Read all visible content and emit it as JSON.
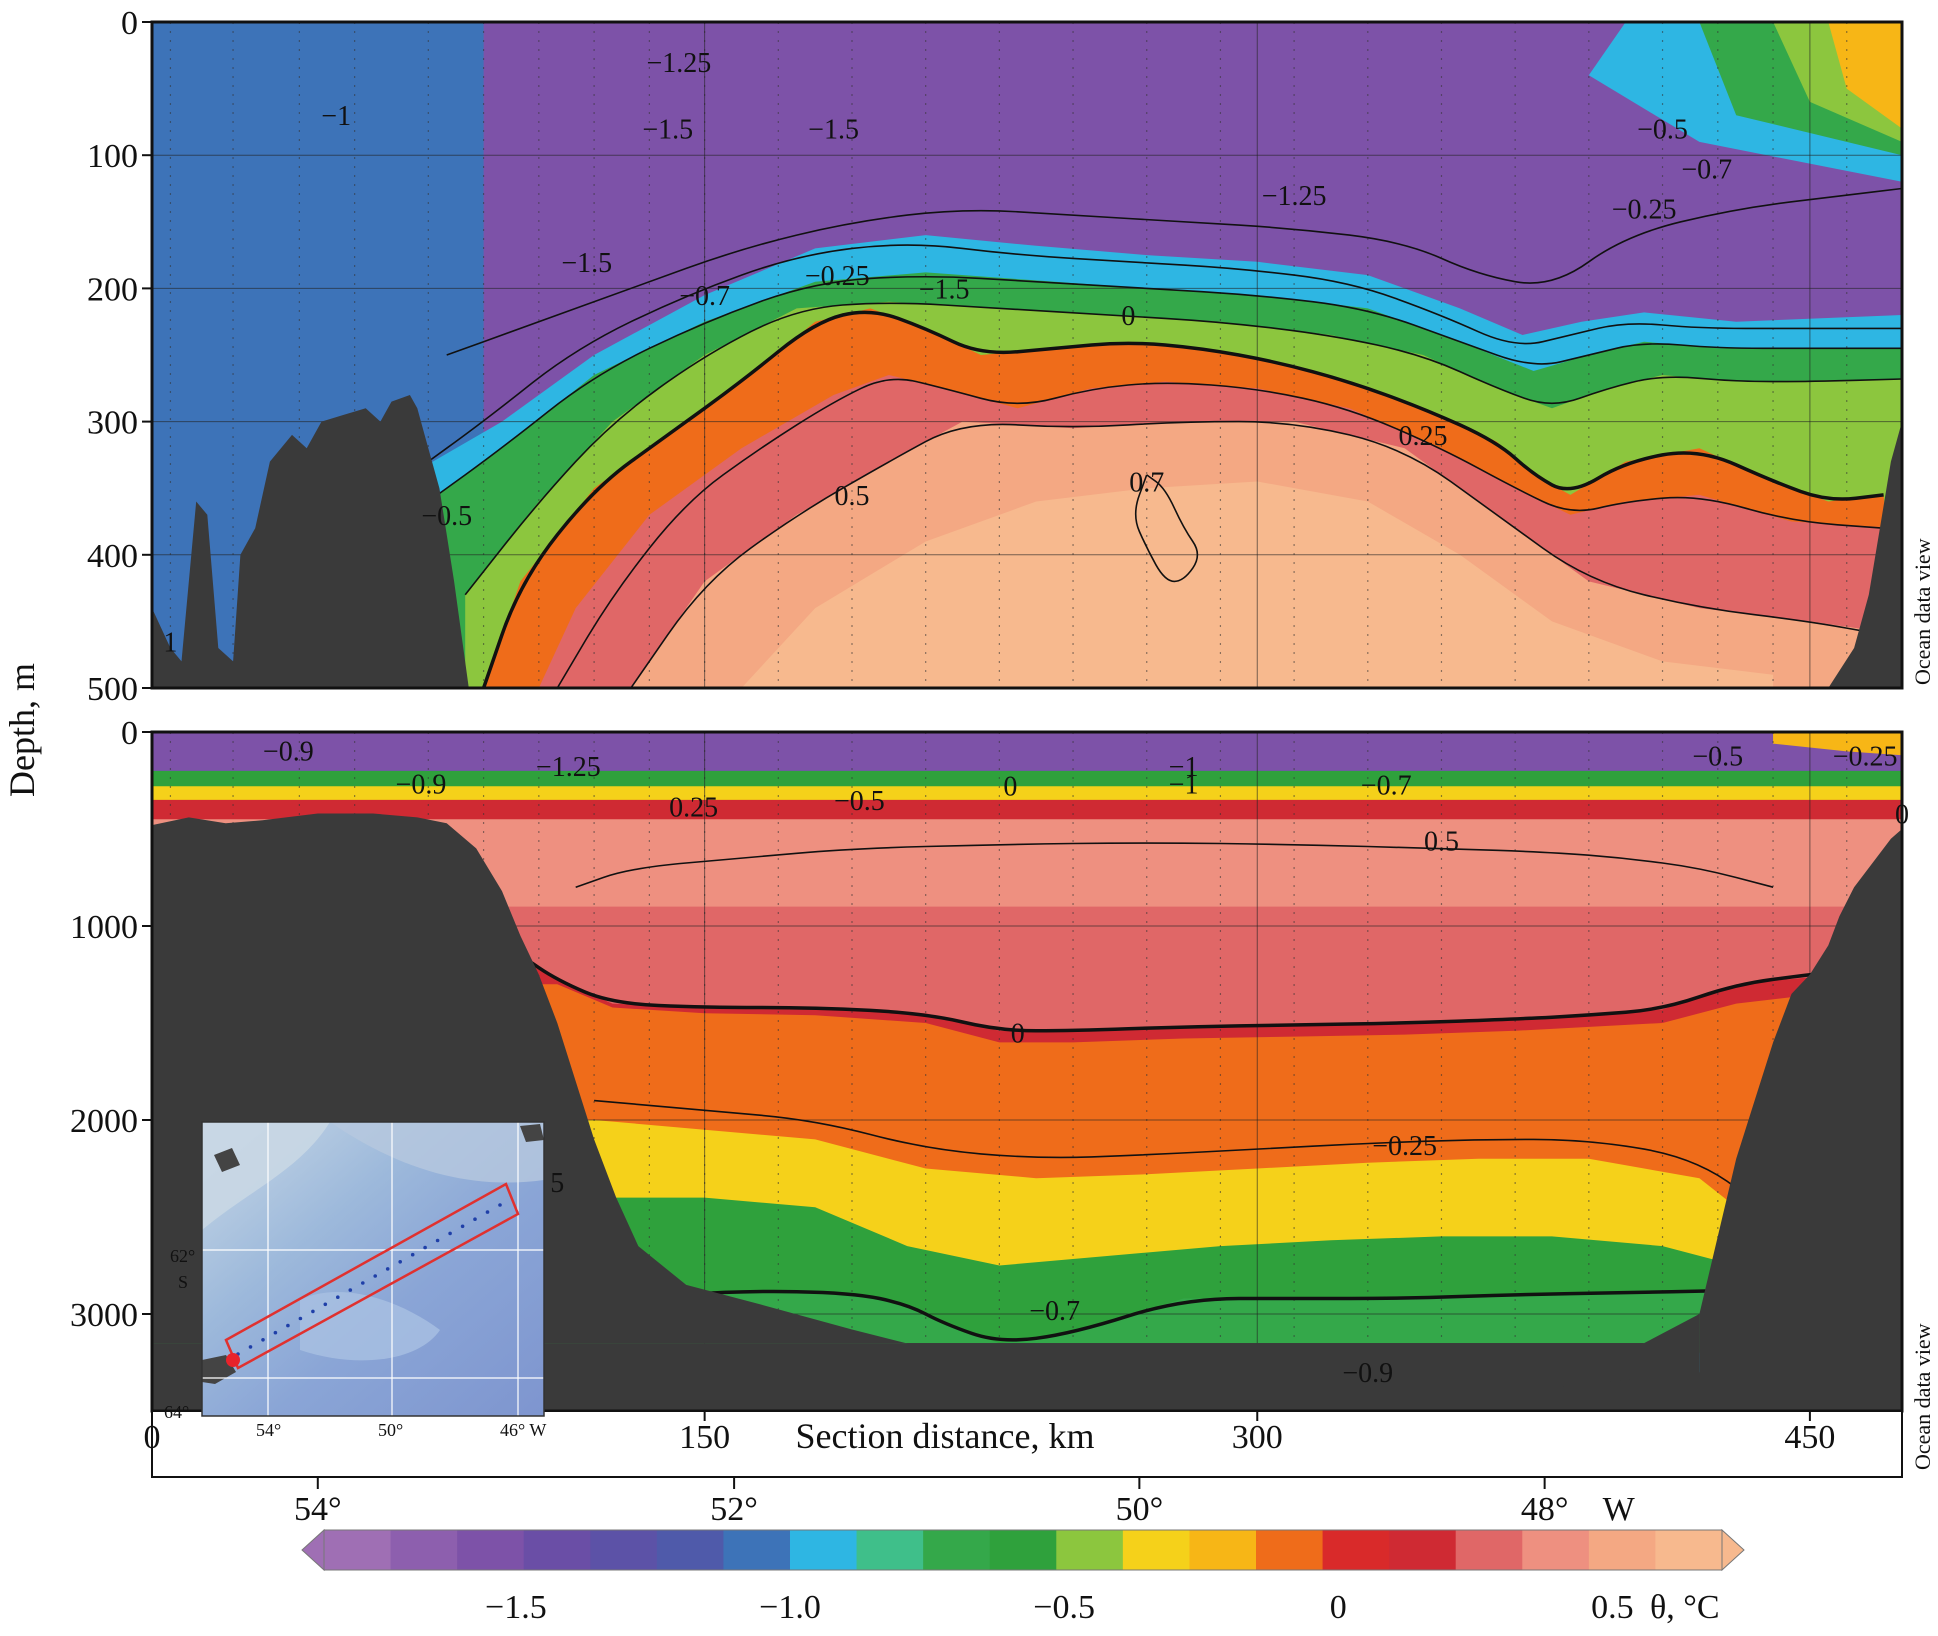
{
  "chart_data": [
    {
      "type": "heatmap",
      "panel": "upper",
      "description_variable": "potential temperature",
      "ylabel": "Depth, m",
      "ylim": [
        500,
        0
      ],
      "yticks": [
        "0",
        "100",
        "200",
        "300",
        "400",
        "500"
      ],
      "xlim": [
        0,
        475
      ],
      "watermark": "Ocean data view",
      "contour_labels": [
        "−1.25",
        "−1.5",
        "−1",
        "−1.5",
        "−1.5",
        "−1.25",
        "−1.5",
        "−0.25",
        "−0.7",
        "0",
        "−0.5",
        "−0.25",
        "−0.7",
        "0.25",
        "0.5",
        "0.7",
        "−0.5",
        "1"
      ],
      "contours": [
        {
          "level": 0,
          "bold": true,
          "x": [
            90,
            100,
            120,
            140,
            160,
            180,
            195,
            210,
            225,
            245,
            265,
            285,
            305,
            325,
            345,
            365,
            375,
            385,
            400,
            420,
            440,
            455,
            470
          ],
          "y": [
            500,
            420,
            350,
            310,
            270,
            225,
            215,
            230,
            250,
            245,
            240,
            245,
            255,
            270,
            290,
            315,
            340,
            355,
            330,
            320,
            345,
            360,
            355
          ]
        },
        {
          "level": 0.25,
          "bold": false,
          "x": [
            110,
            125,
            145,
            165,
            185,
            200,
            215,
            235,
            255,
            275,
            300,
            325,
            350,
            370,
            385,
            400,
            420,
            445,
            470
          ],
          "y": [
            500,
            430,
            360,
            320,
            285,
            265,
            275,
            290,
            275,
            270,
            275,
            290,
            320,
            350,
            370,
            360,
            355,
            375,
            380
          ]
        },
        {
          "level": 0.5,
          "bold": false,
          "x": [
            130,
            150,
            175,
            200,
            220,
            250,
            280,
            310,
            340,
            365,
            390,
            420,
            450,
            470
          ],
          "y": [
            500,
            420,
            370,
            330,
            300,
            305,
            300,
            300,
            320,
            370,
            420,
            440,
            450,
            460
          ]
        },
        {
          "level": -0.25,
          "bold": false,
          "x": [
            85,
            105,
            125,
            150,
            175,
            200,
            230,
            260,
            290,
            320,
            345,
            365,
            380,
            395,
            410,
            430,
            450,
            475
          ],
          "y": [
            430,
            360,
            300,
            250,
            215,
            210,
            215,
            220,
            225,
            235,
            250,
            275,
            290,
            275,
            265,
            270,
            270,
            268
          ]
        },
        {
          "level": -0.5,
          "bold": false,
          "x": [
            75,
            95,
            120,
            150,
            180,
            210,
            240,
            270,
            300,
            330,
            355,
            375,
            390,
            405,
            425,
            450,
            475
          ],
          "y": [
            360,
            320,
            265,
            225,
            195,
            190,
            195,
            200,
            205,
            215,
            240,
            260,
            250,
            240,
            245,
            245,
            245
          ]
        },
        {
          "level": -0.7,
          "bold": false,
          "x": [
            70,
            90,
            115,
            145,
            175,
            205,
            235,
            265,
            295,
            325,
            350,
            370,
            385,
            400,
            420,
            445,
            475
          ],
          "y": [
            340,
            300,
            245,
            205,
            175,
            165,
            175,
            180,
            185,
            195,
            220,
            245,
            235,
            225,
            230,
            230,
            230
          ]
        },
        {
          "level": -1.25,
          "bold": false,
          "x": [
            80,
            100,
            130,
            160,
            190,
            220,
            250,
            280,
            310,
            340,
            360,
            380,
            400,
            430,
            460,
            475
          ],
          "y": [
            250,
            230,
            200,
            170,
            150,
            140,
            145,
            150,
            155,
            165,
            190,
            200,
            160,
            140,
            130,
            125
          ]
        },
        {
          "level": 0.7,
          "bold": false,
          "x": [
            270,
            275,
            280,
            285,
            280,
            275,
            270,
            266,
            270
          ],
          "y": [
            340,
            350,
            380,
            400,
            420,
            420,
            395,
            370,
            340
          ]
        }
      ]
    },
    {
      "type": "heatmap",
      "panel": "lower",
      "description_variable": "potential temperature",
      "ylabel": "Depth, m",
      "ylim": [
        3500,
        0
      ],
      "yticks": [
        "0",
        "1000",
        "2000",
        "3000"
      ],
      "xlabel": "Section distance, km",
      "xticks": [
        "0",
        "150",
        "300",
        "450"
      ],
      "xlim": [
        0,
        475
      ],
      "watermark": "Ocean data view",
      "contour_labels": [
        "−0.9",
        "−1.25",
        "−1",
        "−0.9",
        "−0.5",
        "0",
        "−1",
        "−0.7",
        "−0.5",
        "−0.25",
        "0.25",
        "0",
        "0.5",
        "0",
        "−0.25",
        "−0.7",
        "−0.9",
        "5"
      ],
      "contours": [
        {
          "level": 0,
          "bold": true,
          "x": [
            100,
            110,
            125,
            150,
            180,
            210,
            230,
            250,
            280,
            310,
            340,
            370,
            390,
            410,
            430,
            450,
            465
          ],
          "y": [
            1150,
            1280,
            1400,
            1420,
            1420,
            1450,
            1540,
            1540,
            1520,
            1510,
            1500,
            1480,
            1460,
            1430,
            1300,
            1250,
            1220
          ]
        },
        {
          "level": -0.7,
          "bold": true,
          "x": [
            130,
            160,
            190,
            205,
            215,
            230,
            250,
            280,
            310,
            340,
            370,
            400,
            425
          ],
          "y": [
            2920,
            2880,
            2890,
            2950,
            3050,
            3150,
            3100,
            2920,
            2920,
            2920,
            2900,
            2890,
            2880
          ]
        },
        {
          "level": -0.25,
          "bold": false,
          "x": [
            120,
            150,
            180,
            210,
            240,
            270,
            300,
            330,
            360,
            390,
            420,
            440
          ],
          "y": [
            1900,
            1950,
            2000,
            2150,
            2200,
            2180,
            2150,
            2120,
            2100,
            2100,
            2200,
            2500
          ]
        },
        {
          "level": -0.9,
          "bold": false,
          "x": [
            170,
            200,
            230,
            260,
            290,
            320,
            350,
            380,
            410
          ],
          "y": [
            3400,
            3380,
            3350,
            3330,
            3330,
            3340,
            3350,
            3350,
            3340
          ]
        },
        {
          "level": 0.5,
          "bold": false,
          "x": [
            115,
            130,
            160,
            190,
            230,
            270,
            310,
            350,
            380,
            400,
            420,
            440
          ],
          "y": [
            800,
            700,
            650,
            600,
            580,
            570,
            580,
            600,
            620,
            650,
            700,
            800
          ]
        }
      ]
    }
  ],
  "xaxis_longitude": {
    "labels": [
      "54°",
      "52°",
      "50°",
      "48°"
    ],
    "suffix": "W",
    "values_km": [
      45,
      158,
      268,
      378
    ]
  },
  "colorbar": {
    "ticks": [
      "−1.5",
      "−1.0",
      "−0.5",
      "0",
      "0.5"
    ],
    "tick_values": [
      -1.5,
      -1.0,
      -0.5,
      0,
      0.5
    ],
    "range": [
      -1.85,
      0.7
    ],
    "unit_label": "θ, °C",
    "colors": [
      "#9f6fb4",
      "#8d5fae",
      "#7d52a8",
      "#6a4ea6",
      "#5c52a7",
      "#4f5aaa",
      "#3d73b8",
      "#2eb6e3",
      "#3fbf8a",
      "#34a84a",
      "#2fa13c",
      "#8cc63e",
      "#f5d11a",
      "#f7b616",
      "#ef6c1a",
      "#d92a2a",
      "#cf2a33",
      "#e06767",
      "#ee9080",
      "#f4a883",
      "#f7b98e"
    ]
  },
  "inset_map": {
    "lat_labels": [
      "62°",
      "S",
      "64°"
    ],
    "lon_labels": [
      "54°",
      "50°",
      "46° W"
    ],
    "box_color": "#e0312f",
    "station_color": "#1f3fa8",
    "marker_color": "#e8232b"
  },
  "colors": {
    "terrain": "#3a3a3a",
    "contour": "#111111"
  }
}
